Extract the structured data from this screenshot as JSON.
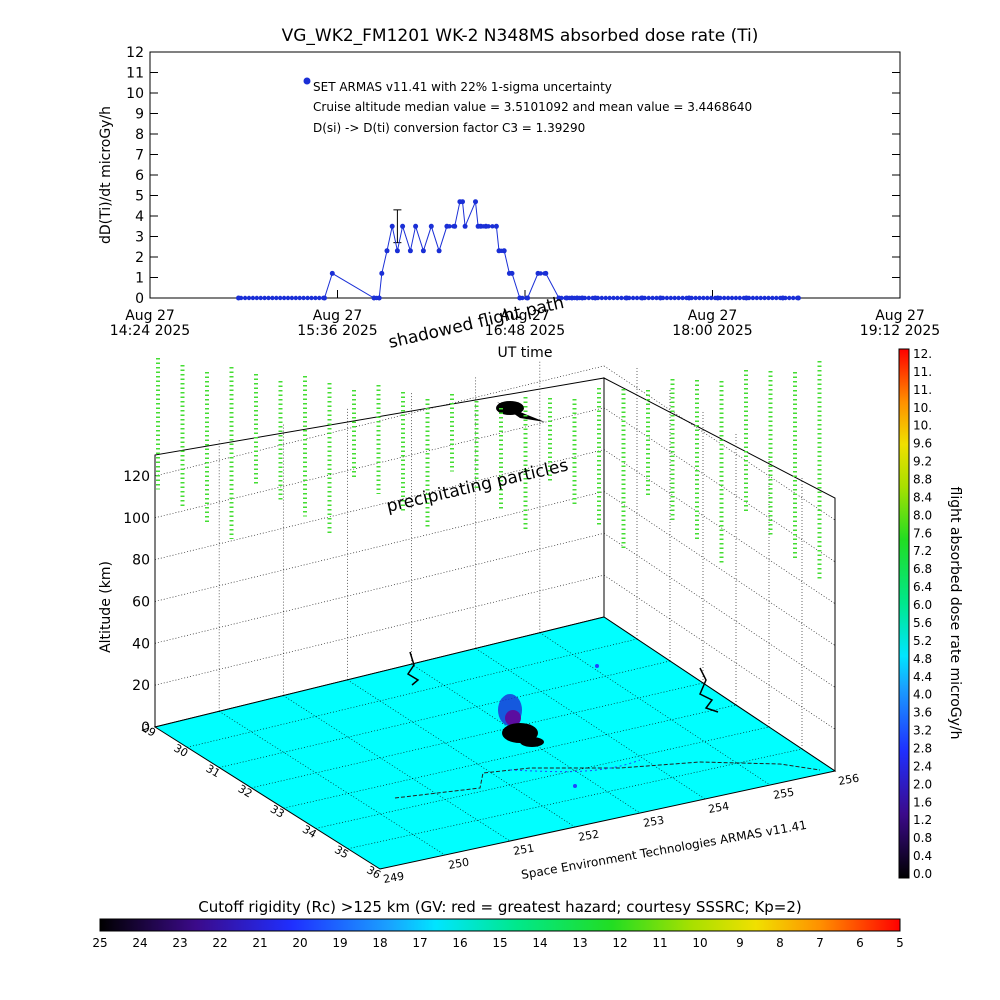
{
  "title": "VG_WK2_FM1201   WK-2 N348MS absorbed dose rate (Ti)",
  "colors": {
    "series": "#1a2fd6",
    "ground": "#00ffff",
    "grid": "#000000",
    "precip": "#44dd33"
  },
  "chart_data": [
    {
      "type": "line",
      "ylabel": "dD(Ti)/dt microGy/h",
      "xlabel": "UT time",
      "ylim": [
        0,
        12
      ],
      "yticks": [
        "0",
        "1",
        "2",
        "3",
        "4",
        "5",
        "6",
        "7",
        "8",
        "9",
        "10",
        "11",
        "12"
      ],
      "xticks": [
        {
          "day": "Aug 27",
          "time": "14:24 2025"
        },
        {
          "day": "Aug 27",
          "time": "15:36 2025"
        },
        {
          "day": "Aug 27",
          "time": "16:48 2025"
        },
        {
          "day": "Aug 27",
          "time": "18:00 2025"
        },
        {
          "day": "Aug 27",
          "time": "19:12 2025"
        }
      ],
      "annotations": [
        "SET ARMAS v11.41 with 22% 1-sigma uncertainty",
        "Cruise altitude median value = 3.5101092 and mean value = 3.4468640",
        "D(si) -> D(ti) conversion factor C3 = 1.39290"
      ],
      "error_bar": {
        "x": "15:59",
        "y": 3.5,
        "low": 2.7,
        "high": 4.3
      },
      "series": [
        {
          "x": [
            "14:58",
            "15:31",
            "15:34",
            "15:50",
            "15:52",
            "15:53",
            "15:55",
            "15:57",
            "15:59",
            "16:01",
            "16:04",
            "16:06",
            "16:09",
            "16:12",
            "16:15",
            "16:18",
            "16:21",
            "16:23",
            "16:24",
            "16:25",
            "16:29",
            "16:30",
            "16:31",
            "16:33",
            "16:37",
            "16:38",
            "16:40",
            "16:42",
            "16:43",
            "16:46",
            "16:49",
            "16:53",
            "16:56",
            "17:01",
            "17:04",
            "17:06",
            "17:08",
            "17:10",
            "17:15",
            "17:27",
            "17:33",
            "17:40",
            "17:51",
            "18:02",
            "18:13",
            "18:27",
            "18:33"
          ],
          "values": [
            0,
            0,
            1.2,
            0,
            0,
            1.2,
            2.3,
            3.5,
            2.3,
            3.5,
            2.3,
            3.5,
            2.3,
            3.5,
            2.3,
            3.5,
            3.5,
            4.7,
            4.7,
            3.5,
            4.7,
            3.5,
            3.5,
            3.5,
            3.5,
            2.3,
            2.3,
            1.2,
            1.2,
            0,
            0,
            1.2,
            1.2,
            0,
            0,
            0,
            0,
            0,
            0,
            0,
            0,
            0,
            0,
            0,
            0,
            0,
            0
          ]
        }
      ]
    },
    {
      "type": "scatter",
      "zlabel": "Altitude (km)",
      "zticks": [
        "0",
        "20",
        "40",
        "60",
        "80",
        "100",
        "120"
      ],
      "lat_ticks": [
        "29",
        "30",
        "31",
        "32",
        "33",
        "34",
        "35",
        "36"
      ],
      "lon_ticks": [
        "249",
        "250",
        "251",
        "252",
        "253",
        "254",
        "255",
        "256"
      ],
      "annotations": [
        "shadowed flight path",
        "precipitating particles"
      ],
      "credit": "Space Environment Technologies ARMAS v11.41",
      "colorbar": {
        "label": "flight absorbed dose rate microGy/h",
        "ticks": [
          "0.0",
          "0.4",
          "0.8",
          "1.2",
          "1.6",
          "2.0",
          "2.4",
          "2.8",
          "3.2",
          "3.6",
          "4.0",
          "4.4",
          "4.8",
          "5.2",
          "5.6",
          "6.0",
          "6.4",
          "6.8",
          "7.2",
          "7.6",
          "8.0",
          "8.4",
          "8.8",
          "9.2",
          "9.6",
          "10.",
          "10.",
          "11.",
          "11.",
          "12."
        ]
      }
    },
    {
      "type": "heatmap",
      "title": "Cutoff rigidity (Rc) >125 km (GV: red = greatest hazard; courtesy SSSRC; Kp=2)",
      "ticks": [
        "25",
        "24",
        "23",
        "22",
        "21",
        "20",
        "19",
        "18",
        "17",
        "16",
        "15",
        "14",
        "13",
        "12",
        "11",
        "10",
        "9",
        "8",
        "7",
        "6",
        "5"
      ]
    }
  ]
}
